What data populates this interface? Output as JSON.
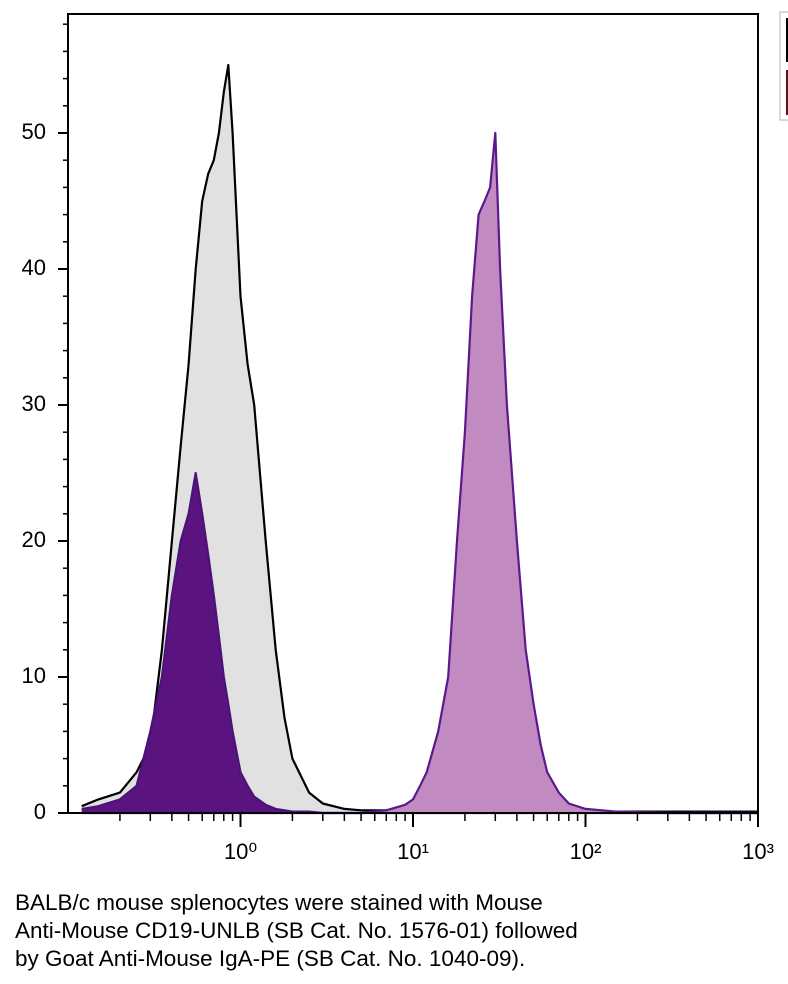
{
  "chart_data": {
    "type": "histogram-overlay",
    "log_x": true,
    "xlim": [
      0.1,
      1000
    ],
    "ylim": [
      0,
      58.75
    ],
    "xticks": [
      {
        "value": 1,
        "label": "10⁰"
      },
      {
        "value": 10,
        "label": "10¹"
      },
      {
        "value": 100,
        "label": "10²"
      },
      {
        "value": 1000,
        "label": "10³"
      }
    ],
    "yticks": [
      0,
      10,
      20,
      30,
      40,
      50
    ],
    "x": [
      0.12,
      0.15,
      0.2,
      0.25,
      0.3,
      0.35,
      0.4,
      0.45,
      0.5,
      0.55,
      0.6,
      0.65,
      0.7,
      0.75,
      0.8,
      0.85,
      0.9,
      1,
      1.1,
      1.2,
      1.4,
      1.6,
      1.8,
      2,
      2.5,
      3,
      4,
      5,
      7,
      9,
      10,
      11,
      12,
      14,
      16,
      18,
      20,
      22,
      24,
      26,
      28,
      30,
      32,
      35,
      40,
      45,
      50,
      55,
      60,
      70,
      80,
      100,
      150,
      300,
      600,
      1000
    ],
    "series": [
      {
        "color": "#000000",
        "fill": "#e1e1e1",
        "values": [
          0.5,
          1,
          1.5,
          3,
          5,
          12,
          20,
          27,
          33,
          40,
          45,
          47,
          48,
          50,
          53,
          55,
          50,
          38,
          33,
          30,
          20,
          12,
          7,
          4,
          1.5,
          0.7,
          0.3,
          0.2,
          0.2,
          0.1,
          0.1,
          0.1,
          0.1,
          0.1,
          0.1,
          0.1,
          0.1,
          0.1,
          0.1,
          0.1,
          0.1,
          0.1,
          0.1,
          0.1,
          0.1,
          0.1,
          0.1,
          0.1,
          0.1,
          0.1,
          0.1,
          0.1,
          0.1,
          0.1,
          0.1,
          0.1
        ]
      },
      {
        "color": "#4a1477",
        "fill": "#5a137f",
        "values": [
          0.3,
          0.5,
          1,
          2,
          6,
          10,
          16,
          20,
          22,
          25,
          22,
          19,
          16,
          13,
          10,
          8,
          6,
          3,
          2,
          1.2,
          0.6,
          0.3,
          0.2,
          0.1,
          0.1,
          0,
          0,
          0,
          0,
          0,
          0,
          0,
          0,
          0,
          0,
          0,
          0,
          0,
          0,
          0,
          0,
          0,
          0,
          0,
          0,
          0,
          0,
          0,
          0,
          0,
          0,
          0,
          0,
          0,
          0,
          0
        ]
      },
      {
        "color": "#5a1a8c",
        "fill": "#c18bc1",
        "values": [
          0,
          0,
          0,
          0,
          0,
          0,
          0,
          0,
          0,
          0,
          0,
          0,
          0,
          0,
          0,
          0,
          0,
          0,
          0,
          0,
          0,
          0,
          0,
          0,
          0,
          0,
          0,
          0,
          0.2,
          0.6,
          1,
          2,
          3,
          6,
          10,
          20,
          28,
          38,
          44,
          45,
          46,
          50,
          40,
          30,
          20,
          12,
          8,
          5,
          3,
          1.5,
          0.7,
          0.3,
          0.1,
          0,
          0,
          0
        ]
      }
    ],
    "caption": [
      "BALB/c mouse splenocytes were stained with Mouse",
      "Anti-Mouse CD19-UNLB (SB Cat. No. 1576-01) followed",
      "by Goat Anti-Mouse IgA-PE (SB Cat. No. 1040-09)."
    ]
  }
}
